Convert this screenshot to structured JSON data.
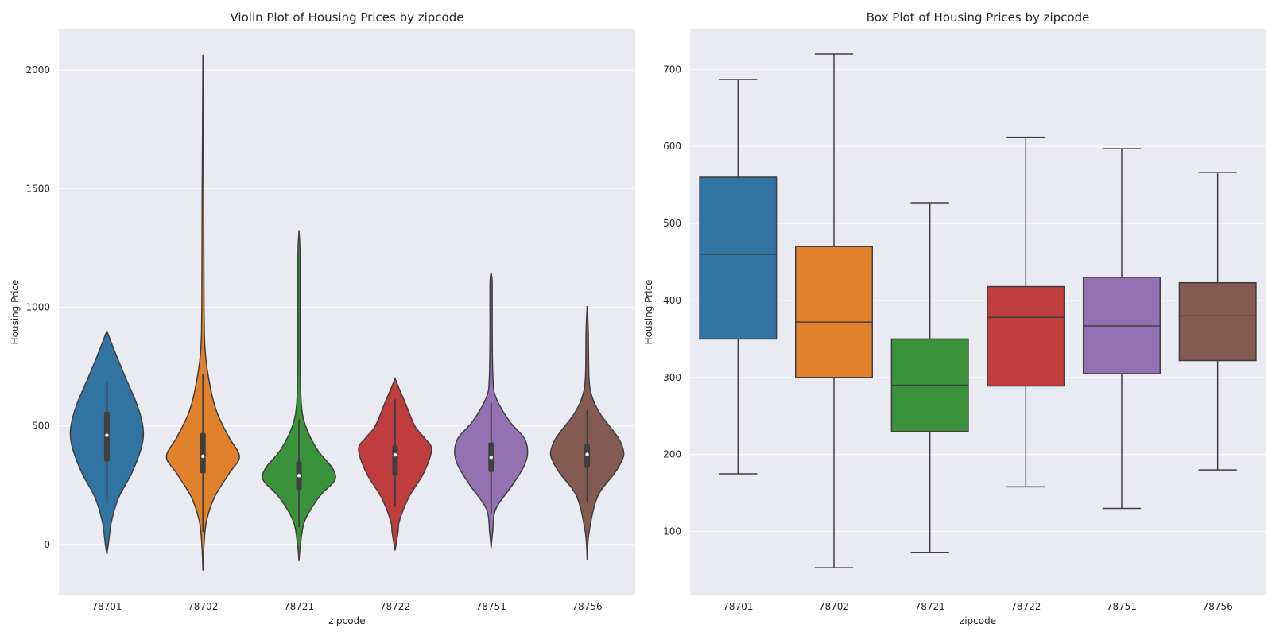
{
  "chart_data": [
    {
      "type": "violin",
      "title": "Violin Plot of Housing Prices by zipcode",
      "xlabel": "zipcode",
      "ylabel": "Housing Price",
      "ylim": [
        -215,
        2175
      ],
      "yticks": [
        0,
        500,
        1000,
        1500,
        2000
      ],
      "categories": [
        "78701",
        "78702",
        "78721",
        "78722",
        "78751",
        "78756"
      ],
      "colors": [
        "#3274a1",
        "#e1812c",
        "#3a923a",
        "#c03d3e",
        "#9372b2",
        "#845b53"
      ],
      "grid": true,
      "violins": [
        {
          "min": -40,
          "max": 900,
          "q1": 350,
          "median": 460,
          "q3": 560,
          "whisker_low": 175,
          "whisker_high": 687,
          "mode": 460,
          "widths": [
            [
              -40,
              0.0
            ],
            [
              0,
              0.04
            ],
            [
              100,
              0.13
            ],
            [
              200,
              0.33
            ],
            [
              300,
              0.68
            ],
            [
              400,
              0.93
            ],
            [
              460,
              1.0
            ],
            [
              520,
              0.96
            ],
            [
              600,
              0.8
            ],
            [
              700,
              0.52
            ],
            [
              800,
              0.25
            ],
            [
              860,
              0.1
            ],
            [
              900,
              0.0
            ]
          ]
        },
        {
          "min": -110,
          "max": 2065,
          "q1": 300,
          "median": 372,
          "q3": 470,
          "whisker_low": 53,
          "whisker_high": 720,
          "mode": 370,
          "widths": [
            [
              -110,
              0.0
            ],
            [
              0,
              0.03
            ],
            [
              100,
              0.1
            ],
            [
              200,
              0.32
            ],
            [
              300,
              0.72
            ],
            [
              370,
              1.0
            ],
            [
              450,
              0.72
            ],
            [
              550,
              0.4
            ],
            [
              650,
              0.22
            ],
            [
              800,
              0.07
            ],
            [
              1000,
              0.03
            ],
            [
              1500,
              0.02
            ],
            [
              2065,
              0.0
            ]
          ]
        },
        {
          "min": -70,
          "max": 1325,
          "q1": 230,
          "median": 290,
          "q3": 350,
          "whisker_low": 73,
          "whisker_high": 527,
          "mode": 290,
          "widths": [
            [
              -70,
              0.0
            ],
            [
              0,
              0.04
            ],
            [
              100,
              0.16
            ],
            [
              200,
              0.55
            ],
            [
              260,
              0.93
            ],
            [
              290,
              1.0
            ],
            [
              330,
              0.88
            ],
            [
              400,
              0.5
            ],
            [
              500,
              0.18
            ],
            [
              600,
              0.06
            ],
            [
              800,
              0.03
            ],
            [
              1200,
              0.03
            ],
            [
              1325,
              0.0
            ]
          ]
        },
        {
          "min": -25,
          "max": 700,
          "q1": 289,
          "median": 378,
          "q3": 418,
          "whisker_low": 158,
          "whisker_high": 612,
          "mode": 400,
          "widths": [
            [
              -25,
              0.0
            ],
            [
              50,
              0.08
            ],
            [
              100,
              0.12
            ],
            [
              200,
              0.38
            ],
            [
              300,
              0.78
            ],
            [
              400,
              1.0
            ],
            [
              450,
              0.8
            ],
            [
              500,
              0.54
            ],
            [
              600,
              0.27
            ],
            [
              650,
              0.13
            ],
            [
              700,
              0.0
            ]
          ]
        },
        {
          "min": -15,
          "max": 1145,
          "q1": 305,
          "median": 367,
          "q3": 430,
          "whisker_low": 130,
          "whisker_high": 597,
          "mode": 390,
          "widths": [
            [
              -15,
              0.0
            ],
            [
              50,
              0.04
            ],
            [
              150,
              0.13
            ],
            [
              250,
              0.58
            ],
            [
              330,
              0.9
            ],
            [
              390,
              1.0
            ],
            [
              450,
              0.9
            ],
            [
              520,
              0.5
            ],
            [
              620,
              0.13
            ],
            [
              700,
              0.05
            ],
            [
              900,
              0.03
            ],
            [
              1100,
              0.03
            ],
            [
              1145,
              0.0
            ]
          ]
        },
        {
          "min": -65,
          "max": 1005,
          "q1": 322,
          "median": 380,
          "q3": 423,
          "whisker_low": 180,
          "whisker_high": 566,
          "mode": 390,
          "widths": [
            [
              -65,
              0.0
            ],
            [
              50,
              0.05
            ],
            [
              200,
              0.28
            ],
            [
              300,
              0.75
            ],
            [
              350,
              0.94
            ],
            [
              390,
              1.0
            ],
            [
              450,
              0.85
            ],
            [
              550,
              0.36
            ],
            [
              620,
              0.14
            ],
            [
              700,
              0.05
            ],
            [
              900,
              0.03
            ],
            [
              1005,
              0.0
            ]
          ]
        }
      ]
    },
    {
      "type": "box",
      "title": "Box Plot of Housing Prices by zipcode",
      "xlabel": "zipcode",
      "ylabel": "Housing Price",
      "ylim": [
        17,
        753
      ],
      "yticks": [
        100,
        200,
        300,
        400,
        500,
        600,
        700
      ],
      "categories": [
        "78701",
        "78702",
        "78721",
        "78722",
        "78751",
        "78756"
      ],
      "colors": [
        "#3274a1",
        "#e1812c",
        "#3a923a",
        "#c03d3e",
        "#9372b2",
        "#845b53"
      ],
      "grid": true,
      "boxes": [
        {
          "whisker_low": 175,
          "q1": 350,
          "median": 460,
          "q3": 560,
          "whisker_high": 687
        },
        {
          "whisker_low": 53,
          "q1": 300,
          "median": 372,
          "q3": 470,
          "whisker_high": 720
        },
        {
          "whisker_low": 73,
          "q1": 230,
          "median": 290,
          "q3": 350,
          "whisker_high": 527
        },
        {
          "whisker_low": 158,
          "q1": 289,
          "median": 378,
          "q3": 418,
          "whisker_high": 612
        },
        {
          "whisker_low": 130,
          "q1": 305,
          "median": 367,
          "q3": 430,
          "whisker_high": 597
        },
        {
          "whisker_low": 180,
          "q1": 322,
          "median": 380,
          "q3": 423,
          "whisker_high": 566
        }
      ]
    }
  ]
}
